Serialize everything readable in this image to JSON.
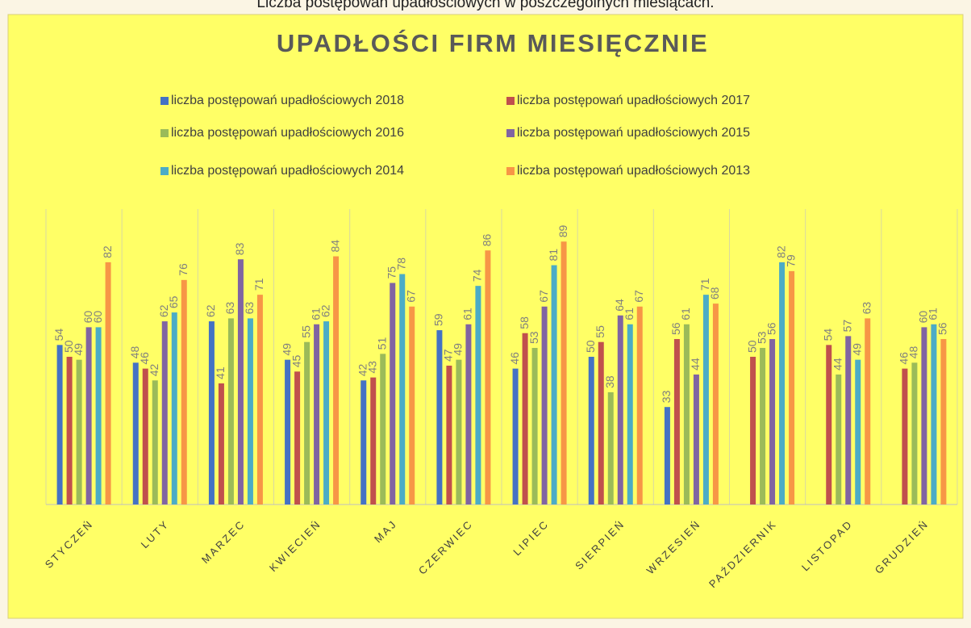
{
  "chart_data": {
    "type": "bar",
    "caption": "Liczba postępowań upadłościowych w poszczególnych miesiącach.",
    "title": "UPADŁOŚCI FIRM MIESIĘCZNIE",
    "categories": [
      "STYCZEŃ",
      "LUTY",
      "MARZEC",
      "KWIECIEŃ",
      "MAJ",
      "CZERWIEC",
      "LIPIEC",
      "SIERPIEŃ",
      "WRZESIEŃ",
      "PAŹDZIERNIK",
      "LISTOPAD",
      "GRUDZIEŃ"
    ],
    "series": [
      {
        "name": "liczba postępowań upadłościowych 2018",
        "color": "#4472c4",
        "values": [
          54,
          48,
          62,
          49,
          42,
          59,
          46,
          50,
          33,
          null,
          null,
          null
        ]
      },
      {
        "name": "liczba postępowań upadłościowych 2017",
        "color": "#c0504d",
        "values": [
          50,
          46,
          41,
          45,
          43,
          47,
          58,
          55,
          56,
          50,
          54,
          46
        ]
      },
      {
        "name": "liczba postępowań upadłościowych 2016",
        "color": "#9bbb59",
        "values": [
          49,
          42,
          63,
          55,
          51,
          49,
          53,
          38,
          61,
          53,
          44,
          48
        ]
      },
      {
        "name": "liczba postępowań upadłościowych 2015",
        "color": "#8064a2",
        "values": [
          60,
          62,
          83,
          61,
          75,
          61,
          67,
          64,
          44,
          56,
          57,
          60
        ]
      },
      {
        "name": "liczba postępowań upadłościowych 2014",
        "color": "#4bacc6",
        "values": [
          60,
          65,
          63,
          62,
          78,
          74,
          81,
          61,
          71,
          82,
          49,
          61
        ]
      },
      {
        "name": "liczba postępowań upadłościowych 2013",
        "color": "#f79646",
        "values": [
          82,
          76,
          71,
          84,
          67,
          86,
          89,
          67,
          68,
          79,
          63,
          56
        ]
      }
    ],
    "ylim": [
      0,
      100
    ]
  }
}
